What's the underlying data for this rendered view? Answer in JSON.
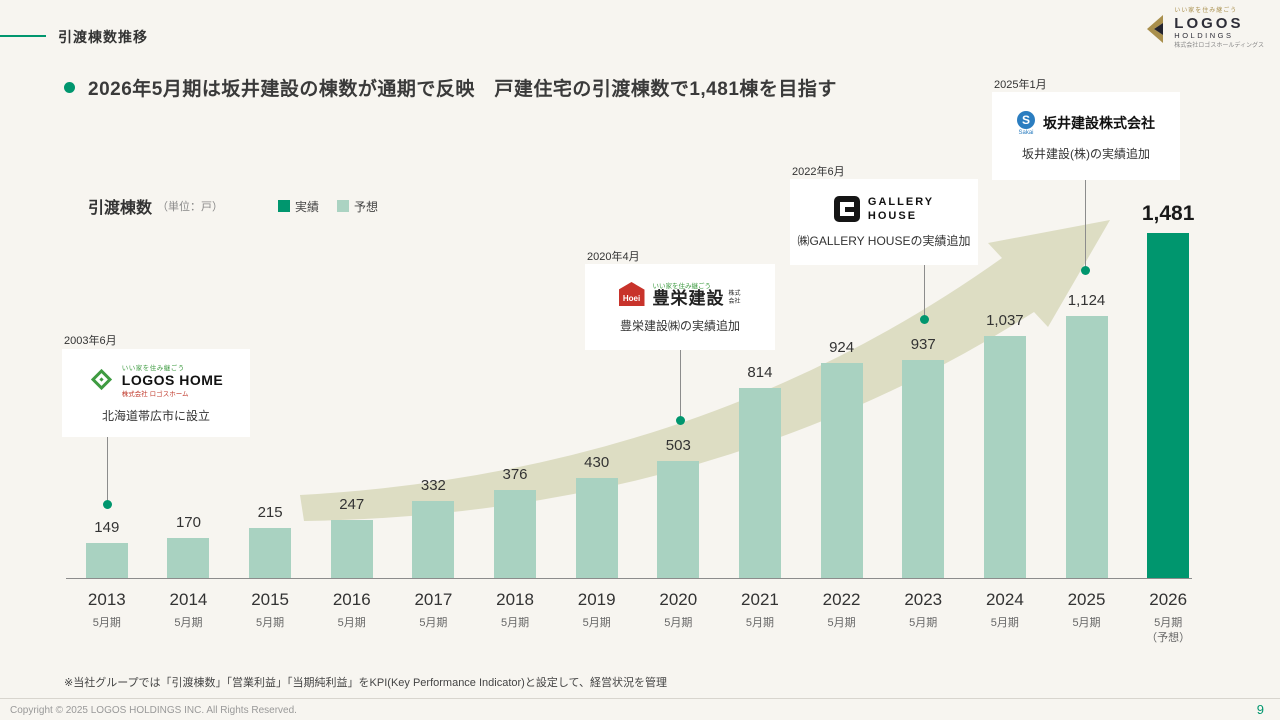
{
  "slide": {
    "title": "引渡棟数推移",
    "headline": "2026年5月期は坂井建設の棟数が通期で反映　戸建住宅の引渡棟数で1,481棟を目指す",
    "footnote": "※当社グループでは「引渡棟数」「営業利益」「当期純利益」をKPI(Key Performance Indicator)と設定して、経営状況を管理",
    "footer": {
      "copyright": "Copyright © 2025 LOGOS HOLDINGS INC. All Rights Reserved.",
      "page": "9"
    }
  },
  "brand": {
    "tagline": "いい家を住み継ごう",
    "name": "LOGOS",
    "sub": "HOLDINGS",
    "company": "株式会社ロゴスホールディングス",
    "accent_color": "#A98F4C"
  },
  "chart": {
    "label": "引渡棟数",
    "unit": "（単位：戸）",
    "legend": [
      {
        "label": "実績",
        "color": "#00966E"
      },
      {
        "label": "予想",
        "color": "#ABD3C2"
      }
    ]
  },
  "chart_data": {
    "type": "bar",
    "title": "引渡棟数推移",
    "ylabel": "引渡棟数（戸）",
    "xlabel": "",
    "ylim": [
      0,
      1500
    ],
    "grid": false,
    "categories": [
      "2013",
      "2014",
      "2015",
      "2016",
      "2017",
      "2018",
      "2019",
      "2020",
      "2021",
      "2022",
      "2023",
      "2024",
      "2025",
      "2026"
    ],
    "sub_labels": [
      "5月期",
      "5月期",
      "5月期",
      "5月期",
      "5月期",
      "5月期",
      "5月期",
      "5月期",
      "5月期",
      "5月期",
      "5月期",
      "5月期",
      "5月期",
      "5月期\n（予想）"
    ],
    "values": [
      149,
      170,
      215,
      247,
      332,
      376,
      430,
      503,
      814,
      924,
      937,
      1037,
      1124,
      1481
    ],
    "bar_color": "#A9D2C1",
    "highlight_color": "#00966E",
    "highlight_index": 13
  },
  "annotations": [
    {
      "date": "2003年6月",
      "text": "北海道帯広市に設立",
      "logo": {
        "tagline": "いい家を住み継ごう",
        "name": "LOGOS HOME",
        "company": "株式会社 ロゴスホーム"
      }
    },
    {
      "date": "2020年4月",
      "text": "豊栄建設㈱の実績追加",
      "logo": {
        "mark": "Hoei",
        "tagline": "いい家を住み継ごう",
        "name": "豊栄建設",
        "company": "株式会社"
      }
    },
    {
      "date": "2022年6月",
      "text": "㈱GALLERY HOUSEの実績追加",
      "logo": {
        "line1": "GALLERY",
        "line2": "HOUSE"
      }
    },
    {
      "date": "2025年1月",
      "text": "坂井建設(株)の実績追加",
      "logo": {
        "mark": "S",
        "mark_sub": "Sakai",
        "name": "坂井建設株式会社"
      }
    }
  ]
}
